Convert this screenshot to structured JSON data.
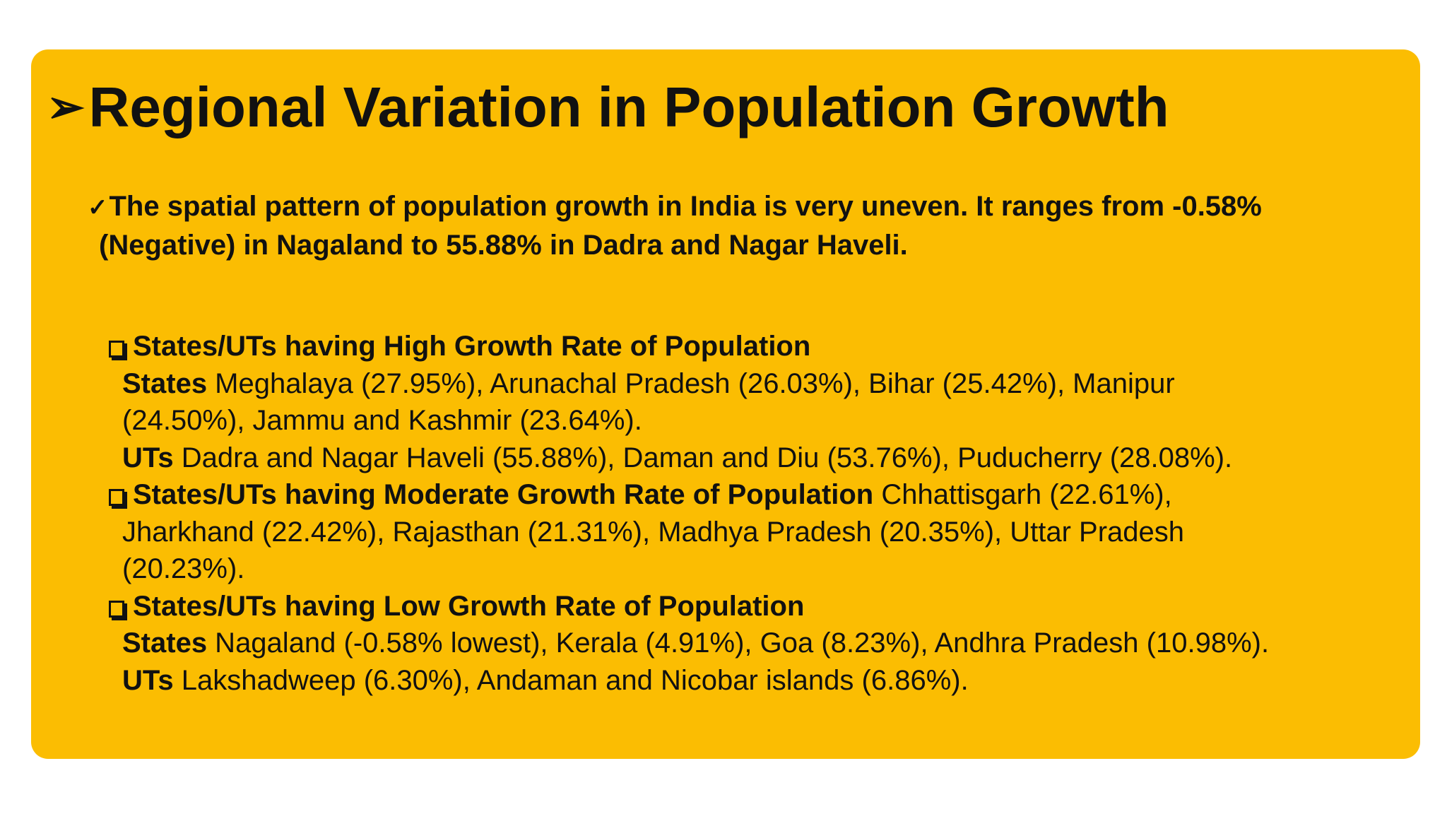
{
  "title": "Regional Variation in Population Growth",
  "title_bullet": "➢",
  "intro": {
    "bullet": "✓",
    "line1": "The spatial pattern of population growth in India is very uneven. It ranges from -0.58%",
    "line2": "(Negative) in Nagaland to 55.88% in Dadra and Nagar Haveli."
  },
  "high": {
    "heading": "States/UTs having High Growth Rate of Population",
    "states_label": "States",
    "states_line1": " Meghalaya (27.95%), Arunachal Pradesh (26.03%), Bihar (25.42%), Manipur",
    "states_line2": "(24.50%), Jammu and Kashmir (23.64%).",
    "uts_label": "UTs",
    "uts_text": " Dadra and Nagar Haveli (55.88%), Daman and Diu (53.76%), Puducherry (28.08%)."
  },
  "moderate": {
    "heading": "States/UTs having Moderate Growth Rate of Population",
    "heading_tail": " Chhattisgarh (22.61%),",
    "line2": "Jharkhand (22.42%), Rajasthan (21.31%), Madhya Pradesh (20.35%), Uttar Pradesh",
    "line3": "(20.23%)."
  },
  "low": {
    "heading": "States/UTs having Low Growth Rate of Population",
    "states_label": "States",
    "states_text": " Nagaland (-0.58% lowest), Kerala (4.91%), Goa (8.23%), Andhra Pradesh (10.98%).",
    "uts_label": "UTs",
    "uts_text": " Lakshadweep (6.30%), Andaman and Nicobar islands (6.86%)."
  },
  "colors": {
    "panel": "#fbbd02",
    "text": "#111111",
    "background": "#ffffff"
  }
}
